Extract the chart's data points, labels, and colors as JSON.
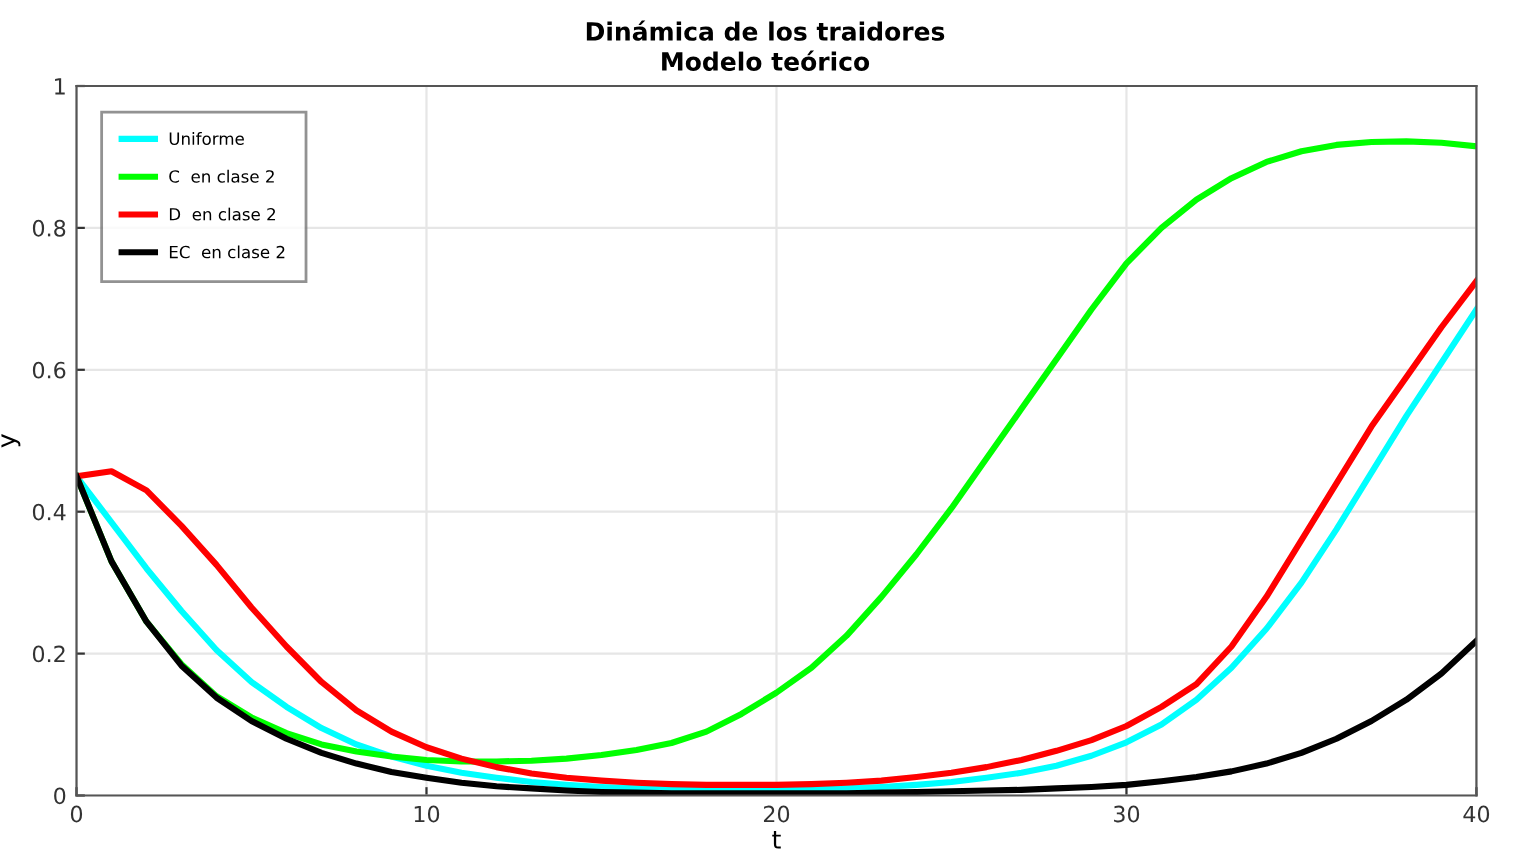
{
  "chart_data": {
    "type": "line",
    "title": "Dinámica de los traidores",
    "subtitle": "Modelo teórico",
    "xlabel": "t",
    "ylabel": "y",
    "x": [
      0,
      1,
      2,
      3,
      4,
      5,
      6,
      7,
      8,
      9,
      10,
      11,
      12,
      13,
      14,
      15,
      16,
      17,
      18,
      19,
      20,
      21,
      22,
      23,
      24,
      25,
      26,
      27,
      28,
      29,
      30,
      31,
      32,
      33,
      34,
      35,
      36,
      37,
      38,
      39,
      40
    ],
    "series": [
      {
        "name": "Uniforme",
        "color": "#00ffff",
        "values": [
          0.45,
          0.385,
          0.32,
          0.26,
          0.205,
          0.16,
          0.125,
          0.095,
          0.072,
          0.055,
          0.042,
          0.032,
          0.025,
          0.019,
          0.015,
          0.012,
          0.01,
          0.009,
          0.008,
          0.008,
          0.008,
          0.009,
          0.01,
          0.012,
          0.015,
          0.019,
          0.025,
          0.032,
          0.042,
          0.056,
          0.075,
          0.1,
          0.135,
          0.18,
          0.235,
          0.3,
          0.375,
          0.455,
          0.535,
          0.61,
          0.685
        ]
      },
      {
        "name": "C  en clase 2",
        "color": "#00ff00",
        "values": [
          0.45,
          0.33,
          0.245,
          0.185,
          0.14,
          0.11,
          0.088,
          0.072,
          0.062,
          0.055,
          0.05,
          0.048,
          0.048,
          0.049,
          0.052,
          0.057,
          0.064,
          0.074,
          0.09,
          0.115,
          0.145,
          0.18,
          0.225,
          0.28,
          0.34,
          0.405,
          0.475,
          0.545,
          0.615,
          0.685,
          0.75,
          0.8,
          0.84,
          0.87,
          0.893,
          0.908,
          0.917,
          0.921,
          0.922,
          0.92,
          0.915
        ]
      },
      {
        "name": "D  en clase 2",
        "color": "#ff0000",
        "values": [
          0.45,
          0.457,
          0.43,
          0.38,
          0.325,
          0.265,
          0.21,
          0.16,
          0.12,
          0.09,
          0.068,
          0.052,
          0.04,
          0.031,
          0.025,
          0.021,
          0.018,
          0.016,
          0.015,
          0.015,
          0.015,
          0.016,
          0.018,
          0.021,
          0.026,
          0.032,
          0.04,
          0.05,
          0.063,
          0.078,
          0.098,
          0.125,
          0.157,
          0.21,
          0.28,
          0.36,
          0.44,
          0.52,
          0.59,
          0.66,
          0.725
        ]
      },
      {
        "name": "EC  en clase 2",
        "color": "#000000",
        "values": [
          0.45,
          0.33,
          0.245,
          0.183,
          0.138,
          0.105,
          0.08,
          0.06,
          0.045,
          0.033,
          0.025,
          0.018,
          0.013,
          0.01,
          0.007,
          0.005,
          0.004,
          0.003,
          0.003,
          0.003,
          0.003,
          0.003,
          0.003,
          0.004,
          0.005,
          0.006,
          0.007,
          0.008,
          0.01,
          0.012,
          0.015,
          0.02,
          0.026,
          0.034,
          0.045,
          0.06,
          0.08,
          0.105,
          0.135,
          0.172,
          0.218
        ]
      }
    ],
    "xlim": [
      0,
      40
    ],
    "ylim": [
      0,
      1
    ],
    "xticks": [
      0,
      10,
      20,
      30,
      40
    ],
    "yticks": [
      0,
      0.2,
      0.4,
      0.6,
      0.8,
      1
    ],
    "grid": true,
    "legend": "top left",
    "marker": "none",
    "line_style": "solid"
  }
}
